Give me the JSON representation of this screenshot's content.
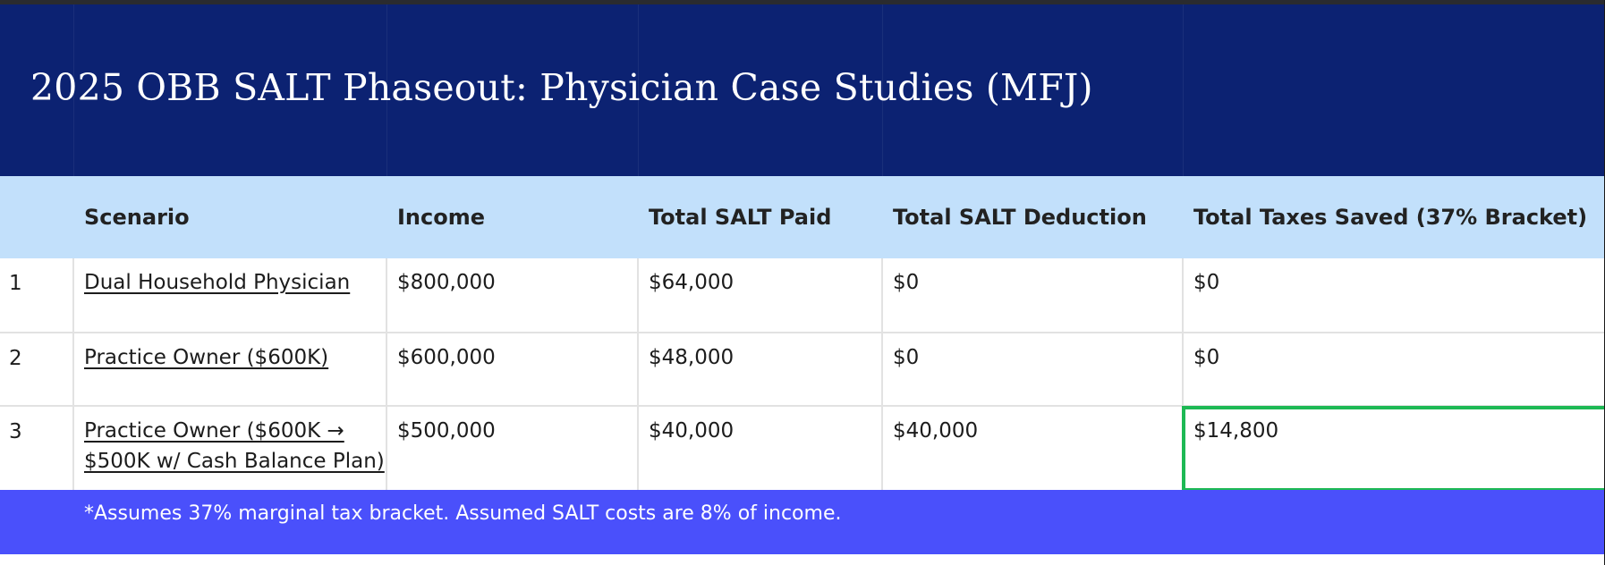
{
  "title": "2025 OBB SALT Phaseout: Physician Case Studies (MFJ)",
  "table": {
    "headers": [
      "Scenario",
      "Income",
      "Total SALT Paid",
      "Total SALT Deduction",
      "Total Taxes Saved (37% Bracket)"
    ],
    "rows": [
      {
        "num": "1",
        "scenario": [
          "Dual Household Physician"
        ],
        "income": "$800,000",
        "salt_paid": "$64,000",
        "salt_deduction": "$0",
        "taxes_saved": "$0"
      },
      {
        "num": "2",
        "scenario": [
          "Practice Owner ($600K)"
        ],
        "income": "$600,000",
        "salt_paid": "$48,000",
        "salt_deduction": "$0",
        "taxes_saved": "$0"
      },
      {
        "num": "3",
        "scenario": [
          "Practice Owner ($600K →",
          "$500K w/ Cash Balance Plan)"
        ],
        "income": "$500,000",
        "salt_paid": "$40,000",
        "salt_deduction": "$40,000",
        "taxes_saved": "$14,800"
      }
    ]
  },
  "footnote": "*Assumes 37% marginal tax bracket.  Assumed SALT costs are 8% of income.",
  "colors": {
    "title_band": "#0c2272",
    "header_band": "#c2e0fb",
    "footer_band": "#4a50fb",
    "highlight_border": "#1db954"
  }
}
